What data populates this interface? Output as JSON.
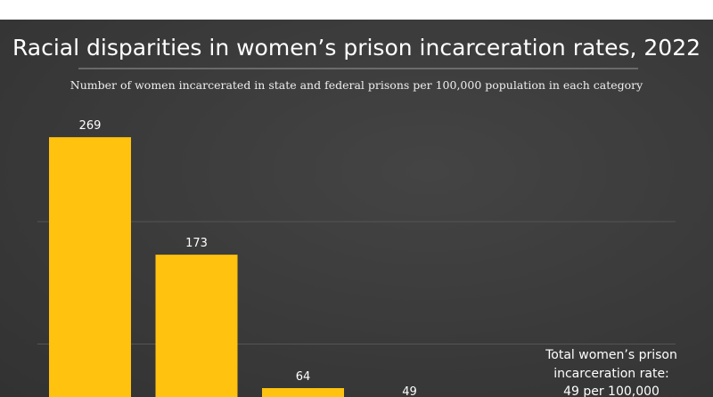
{
  "chart_data": {
    "type": "bar",
    "title": "Racial disparities in women’s prison incarceration rates, 2022",
    "subtitle": "Number of women incarcerated in state and federal prisons per 100,000 population in each category",
    "values": [
      269,
      173,
      64,
      49
    ],
    "ylim": [
      0,
      300
    ],
    "gridlines": [
      100,
      200
    ],
    "grid": true,
    "bar_color": "#ffc20e",
    "background_color": "#3a3a3a",
    "annotation": [
      "Total women’s prison",
      "incarceration rate:",
      "49 per 100,000"
    ]
  }
}
